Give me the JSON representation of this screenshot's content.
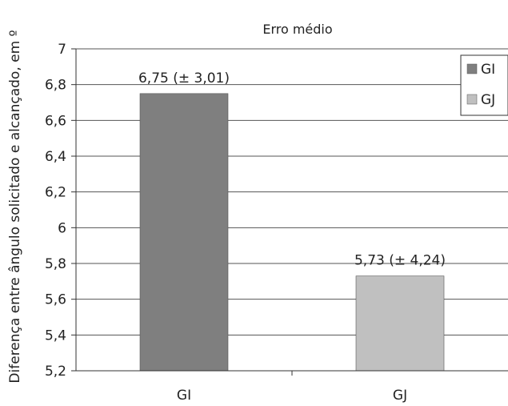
{
  "chart_data": {
    "type": "bar",
    "title": "Erro médio",
    "ylabel": "Diferença entre ângulo solicitado e alcançado, em º",
    "xlabel": "",
    "categories": [
      "GI",
      "GJ"
    ],
    "values": [
      6.75,
      5.73
    ],
    "data_labels": [
      "6,75 (± 3,01)",
      "5,73 (± 4,24)"
    ],
    "ylim": [
      5.2,
      7.0
    ],
    "yticks": [
      5.2,
      5.4,
      5.6,
      5.8,
      6.0,
      6.2,
      6.4,
      6.6,
      6.8,
      7.0
    ],
    "ytick_labels": [
      "5,2",
      "5,4",
      "5,6",
      "5,8",
      "6",
      "6,2",
      "6,4",
      "6,6",
      "6,8",
      "7"
    ],
    "grid": true,
    "legend": {
      "placement": "top-right",
      "entries": [
        {
          "label": "GI",
          "color": "#7f7f7f"
        },
        {
          "label": "GJ",
          "color": "#c0c0c0"
        }
      ]
    },
    "colors": [
      "#7f7f7f",
      "#c0c0c0"
    ]
  }
}
